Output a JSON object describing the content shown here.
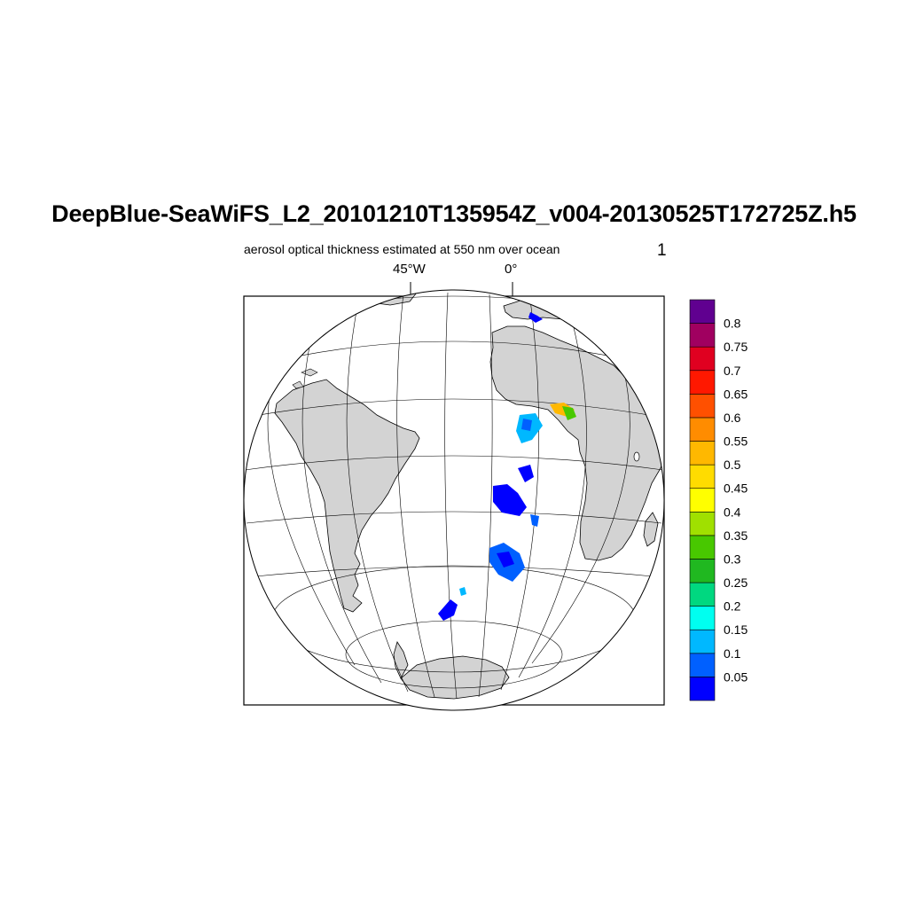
{
  "title": "DeepBlue-SeaWiFS_L2_20101210T135954Z_v004-20130525T172725Z.h5",
  "subtitle": "aerosol optical thickness estimated at 550 nm over ocean",
  "panel_number": "1",
  "lon_labels": [
    "45°W",
    "0°"
  ],
  "colorbar": {
    "colors": [
      "#0000ff",
      "#0060ff",
      "#00b8ff",
      "#00fff0",
      "#00d880",
      "#20b820",
      "#48c800",
      "#a0e000",
      "#ffff00",
      "#ffdc00",
      "#ffb800",
      "#ff8c00",
      "#ff5000",
      "#ff1800",
      "#e00020",
      "#a00060",
      "#600090"
    ],
    "labels": [
      "0.05",
      "0.1",
      "0.15",
      "0.2",
      "0.25",
      "0.3",
      "0.35",
      "0.4",
      "0.45",
      "0.5",
      "0.55",
      "0.6",
      "0.65",
      "0.7",
      "0.75",
      "0.8"
    ]
  },
  "colors": {
    "land": "#d3d3d3",
    "ocean": "#ffffff",
    "grid": "#000000"
  }
}
